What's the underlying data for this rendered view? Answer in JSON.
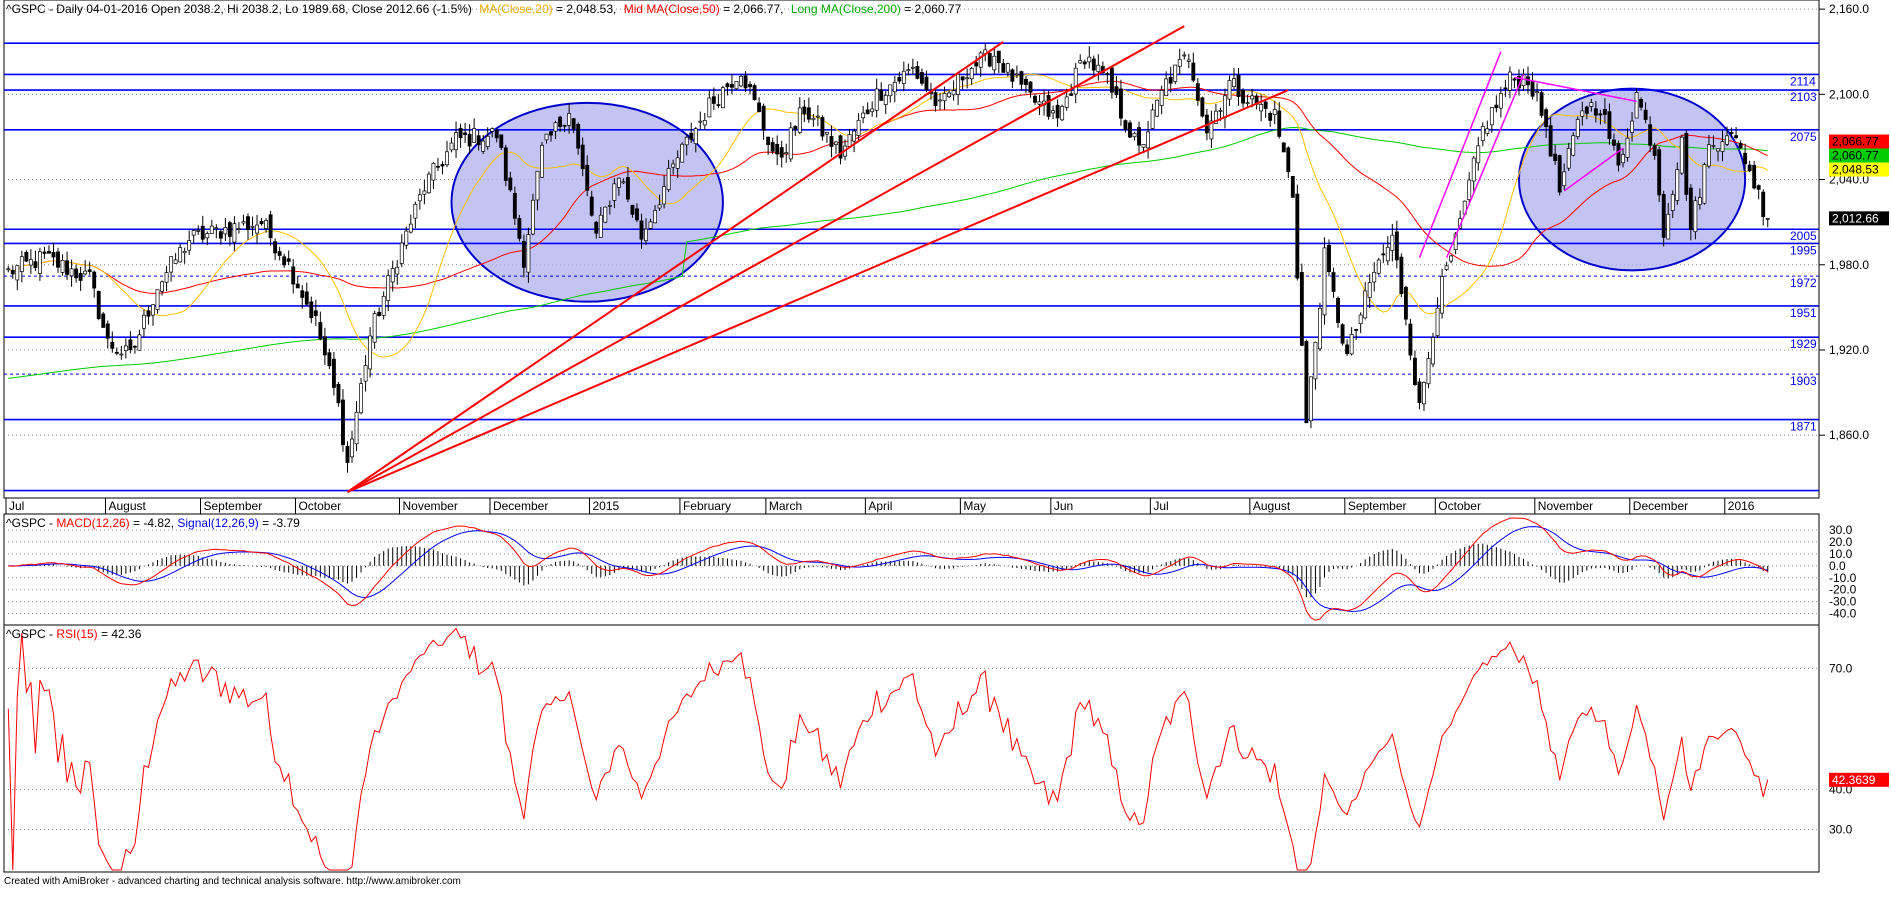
{
  "header": {
    "symbol": "^GSPC",
    "main_title": "^GSPC - Daily 04-01-2016 Open 2038.2, Hi 2038.2, Lo 1989.68, Close 2012.66 (-1.5%)",
    "ma20_label": "MA(Close,20)",
    "ma20_value": " = 2,048.53,",
    "ma50_label": "Mid MA(Close,50)",
    "ma50_value": " = 2,066.77,",
    "ma200_label": "Long MA(Close,200)",
    "ma200_value": " = 2,060.77",
    "macd_prefix": "^GSPC - ",
    "macd_label": "MACD(12,26)",
    "macd_value": " = -4.82, ",
    "signal_label": "Signal(12,26,9)",
    "signal_value": " = -3.79",
    "rsi_prefix": "^GSPC - ",
    "rsi_label": "RSI(15)",
    "rsi_value": " = 42.36"
  },
  "footer": "Created with AmiBroker - advanced charting and technical analysis software. http://www.amibroker.com",
  "colors": {
    "candle": "#000000",
    "hline": "#0000ff",
    "trend": "#ff0000",
    "channel": "#ff00ff",
    "ma20": "#ffc000",
    "ma50": "#ff0000",
    "ma200": "#00cc00",
    "ellipse_fill": "#b0b0f0",
    "ellipse_stroke": "#0000cc",
    "macd": "#ff0000",
    "signal": "#0000ff",
    "rsi": "#ff0000"
  },
  "chart_data": {
    "type": "candlestick",
    "price_axis": {
      "range": [
        1820,
        2165
      ],
      "ticks": [
        "2,160.0",
        "2,100.0",
        "2,040.0",
        "1,980.0",
        "1,920.0",
        "1,860.0"
      ],
      "tick_values": [
        2160,
        2100,
        2040,
        1980,
        1920,
        1860
      ]
    },
    "x_axis": {
      "count": 390,
      "months": [
        {
          "label": "Jul",
          "i": 0
        },
        {
          "label": "August",
          "i": 22
        },
        {
          "label": "September",
          "i": 43
        },
        {
          "label": "October",
          "i": 64
        },
        {
          "label": "November",
          "i": 87
        },
        {
          "label": "December",
          "i": 107
        },
        {
          "label": "2015",
          "i": 129
        },
        {
          "label": "February",
          "i": 149
        },
        {
          "label": "March",
          "i": 168
        },
        {
          "label": "April",
          "i": 190
        },
        {
          "label": "May",
          "i": 211
        },
        {
          "label": "Jun",
          "i": 231
        },
        {
          "label": "Jul",
          "i": 253
        },
        {
          "label": "August",
          "i": 275
        },
        {
          "label": "September",
          "i": 296
        },
        {
          "label": "October",
          "i": 316
        },
        {
          "label": "November",
          "i": 338
        },
        {
          "label": "December",
          "i": 359
        },
        {
          "label": "2016",
          "i": 380
        }
      ]
    },
    "anchors": [
      [
        0,
        1975
      ],
      [
        8,
        1985
      ],
      [
        18,
        1970
      ],
      [
        22,
        1925
      ],
      [
        27,
        1915
      ],
      [
        33,
        1965
      ],
      [
        40,
        1998
      ],
      [
        48,
        2005
      ],
      [
        56,
        2010
      ],
      [
        62,
        1980
      ],
      [
        68,
        1940
      ],
      [
        73,
        1880
      ],
      [
        75,
        1840
      ],
      [
        80,
        1930
      ],
      [
        86,
        1985
      ],
      [
        92,
        2035
      ],
      [
        99,
        2068
      ],
      [
        108,
        2072
      ],
      [
        114,
        1985
      ],
      [
        118,
        2060
      ],
      [
        124,
        2090
      ],
      [
        130,
        2000
      ],
      [
        135,
        2045
      ],
      [
        140,
        2000
      ],
      [
        148,
        2055
      ],
      [
        155,
        2092
      ],
      [
        162,
        2118
      ],
      [
        170,
        2052
      ],
      [
        176,
        2090
      ],
      [
        184,
        2058
      ],
      [
        192,
        2100
      ],
      [
        200,
        2118
      ],
      [
        206,
        2090
      ],
      [
        212,
        2118
      ],
      [
        218,
        2128
      ],
      [
        225,
        2100
      ],
      [
        232,
        2082
      ],
      [
        238,
        2128
      ],
      [
        243,
        2108
      ],
      [
        250,
        2060
      ],
      [
        256,
        2108
      ],
      [
        261,
        2128
      ],
      [
        265,
        2075
      ],
      [
        270,
        2108
      ],
      [
        275,
        2095
      ],
      [
        280,
        2085
      ],
      [
        284,
        2030
      ],
      [
        287,
        1868
      ],
      [
        291,
        1985
      ],
      [
        296,
        1915
      ],
      [
        302,
        1975
      ],
      [
        306,
        1998
      ],
      [
        309,
        1945
      ],
      [
        312,
        1878
      ],
      [
        316,
        1955
      ],
      [
        320,
        1995
      ],
      [
        326,
        2075
      ],
      [
        332,
        2110
      ],
      [
        336,
        2112
      ],
      [
        340,
        2078
      ],
      [
        343,
        2032
      ],
      [
        348,
        2090
      ],
      [
        352,
        2092
      ],
      [
        356,
        2048
      ],
      [
        360,
        2100
      ],
      [
        364,
        2060
      ],
      [
        366,
        2005
      ],
      [
        370,
        2065
      ],
      [
        372,
        2005
      ],
      [
        376,
        2062
      ],
      [
        380,
        2075
      ],
      [
        384,
        2055
      ],
      [
        389,
        2012
      ]
    ],
    "last_close": 2012.66,
    "ma_values": {
      "ma20": 2048.53,
      "ma50": 2066.77,
      "ma200": 2060.77
    },
    "price_labels": {
      "ma50": "2,066.77",
      "ma200": "2,060.77",
      "ma20": "2,048.53",
      "close": "2,012.66"
    },
    "horizontal_levels": [
      {
        "value": 2136,
        "label": "",
        "dashed": false
      },
      {
        "value": 2114,
        "label": "2114",
        "dashed": false
      },
      {
        "value": 2103,
        "label": "2103",
        "dashed": false
      },
      {
        "value": 2075,
        "label": "2075",
        "dashed": false
      },
      {
        "value": 2005,
        "label": "2005",
        "dashed": false
      },
      {
        "value": 1995,
        "label": "1995",
        "dashed": false
      },
      {
        "value": 1972,
        "label": "1972",
        "dashed": true
      },
      {
        "value": 1951,
        "label": "1951",
        "dashed": false
      },
      {
        "value": 1929,
        "label": "1929",
        "dashed": false
      },
      {
        "value": 1903,
        "label": "1903",
        "dashed": true
      },
      {
        "value": 1871,
        "label": "1871",
        "dashed": false
      },
      {
        "value": 1821,
        "label": "",
        "dashed": false
      }
    ],
    "trendlines": [
      {
        "from": [
          75,
          1820
        ],
        "to": [
          220,
          2137
        ]
      },
      {
        "from": [
          75,
          1820
        ],
        "to": [
          260,
          2148
        ]
      },
      {
        "from": [
          75,
          1820
        ],
        "to": [
          283,
          2103
        ]
      }
    ],
    "channel_lines": [
      {
        "from": [
          312,
          1985
        ],
        "to": [
          330,
          2130
        ]
      },
      {
        "from": [
          318,
          1985
        ],
        "to": [
          335,
          2114
        ]
      },
      {
        "from": [
          333,
          2112
        ],
        "to": [
          360,
          2095
        ]
      },
      {
        "from": [
          344,
          2032
        ],
        "to": [
          357,
          2062
        ]
      }
    ],
    "ellipses": [
      {
        "cx": 128,
        "cy": 2024,
        "rx": 30,
        "ry": 70
      },
      {
        "cx": 359,
        "cy": 2040,
        "rx": 25,
        "ry": 64
      }
    ],
    "macd": {
      "range": [
        -47,
        40
      ],
      "ticks": [
        "30.0",
        "20.0",
        "10.0",
        "0.0",
        "-10.0",
        "-20.0",
        "-30.0",
        "-40.0"
      ],
      "tick_values": [
        30,
        20,
        10,
        0,
        -10,
        -20,
        -30,
        -40
      ],
      "last_macd": -4.82,
      "last_signal": -3.79
    },
    "rsi": {
      "range": [
        20,
        80
      ],
      "ticks": [
        "70.0",
        "40.0",
        "30.0"
      ],
      "tick_values": [
        70,
        40,
        30
      ],
      "last": 42.36,
      "last_label": "42.3639"
    }
  }
}
